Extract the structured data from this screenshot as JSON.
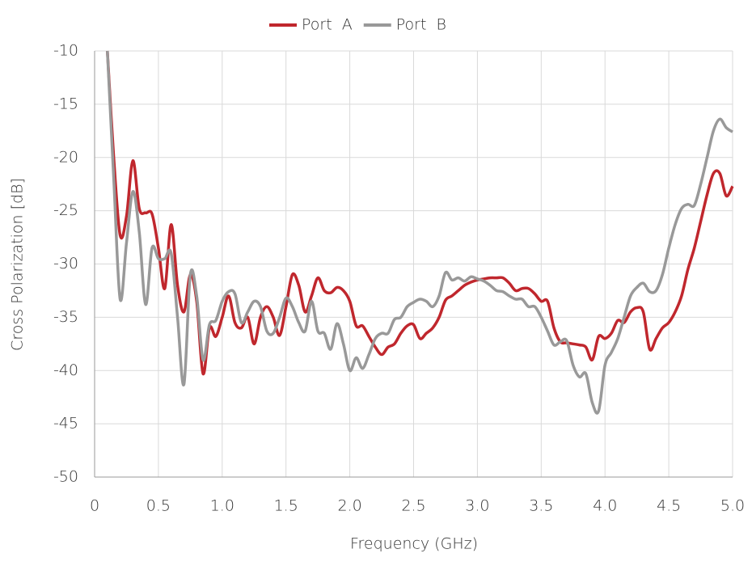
{
  "chart_data": {
    "type": "line",
    "x_label": "Frequency (GHz)",
    "y_label": "Cross Polarization [dB]",
    "x": [
      0.1,
      0.15,
      0.2,
      0.25,
      0.3,
      0.35,
      0.4,
      0.45,
      0.5,
      0.55,
      0.6,
      0.65,
      0.7,
      0.75,
      0.8,
      0.85,
      0.9,
      0.95,
      1.0,
      1.05,
      1.1,
      1.15,
      1.2,
      1.25,
      1.3,
      1.35,
      1.4,
      1.45,
      1.5,
      1.55,
      1.6,
      1.65,
      1.7,
      1.75,
      1.8,
      1.85,
      1.9,
      1.95,
      2.0,
      2.05,
      2.1,
      2.15,
      2.2,
      2.25,
      2.3,
      2.35,
      2.4,
      2.45,
      2.5,
      2.55,
      2.6,
      2.65,
      2.7,
      2.75,
      2.8,
      2.85,
      2.9,
      2.95,
      3.0,
      3.05,
      3.1,
      3.15,
      3.2,
      3.25,
      3.3,
      3.35,
      3.4,
      3.45,
      3.5,
      3.55,
      3.6,
      3.65,
      3.7,
      3.75,
      3.8,
      3.85,
      3.9,
      3.95,
      4.0,
      4.05,
      4.1,
      4.15,
      4.2,
      4.25,
      4.3,
      4.35,
      4.4,
      4.45,
      4.5,
      4.55,
      4.6,
      4.65,
      4.7,
      4.75,
      4.8,
      4.85,
      4.9,
      4.95,
      5.0
    ],
    "series": [
      {
        "name": "Port  A",
        "color": "#c0272d",
        "values": [
          -10,
          -20,
          -27.3,
          -25.5,
          -20.3,
          -24.8,
          -25.2,
          -25.3,
          -28.5,
          -32.3,
          -26.3,
          -32,
          -34.5,
          -31,
          -33.5,
          -40.3,
          -36,
          -36.8,
          -35,
          -33,
          -35.5,
          -36,
          -35,
          -37.5,
          -35,
          -34,
          -35,
          -36.7,
          -34,
          -31,
          -32,
          -34.5,
          -33,
          -31.3,
          -32.5,
          -32.7,
          -32.2,
          -32.5,
          -33.5,
          -35.8,
          -35.8,
          -36.8,
          -37.8,
          -38.5,
          -37.8,
          -37.5,
          -36.5,
          -35.8,
          -35.7,
          -37,
          -36.5,
          -36,
          -35,
          -33.4,
          -33,
          -32.5,
          -32,
          -31.7,
          -31.5,
          -31.4,
          -31.3,
          -31.3,
          -31.3,
          -31.8,
          -32.5,
          -32.3,
          -32.3,
          -32.8,
          -33.5,
          -33.5,
          -36,
          -37.3,
          -37.4,
          -37.5,
          -37.6,
          -37.8,
          -39,
          -36.8,
          -37,
          -36.5,
          -35.3,
          -35.5,
          -34.5,
          -34.1,
          -34.5,
          -38,
          -37,
          -36,
          -35.5,
          -34.5,
          -33,
          -30.5,
          -28.5,
          -26,
          -23.5,
          -21.5,
          -21.5,
          -23.6,
          -22.7
        ]
      },
      {
        "name": "Port  B",
        "color": "#999999",
        "values": [
          -10,
          -22,
          -33.3,
          -28,
          -23.2,
          -27,
          -33.8,
          -28.5,
          -29.5,
          -29.5,
          -29,
          -35,
          -41.3,
          -31,
          -33,
          -39,
          -35.7,
          -35.3,
          -33.5,
          -32.6,
          -32.8,
          -35.5,
          -34.5,
          -33.5,
          -34,
          -36.3,
          -36.5,
          -35,
          -33.2,
          -34,
          -35.5,
          -36.3,
          -33.5,
          -36.3,
          -36.5,
          -38,
          -35.6,
          -37.5,
          -40,
          -38.8,
          -39.8,
          -38.5,
          -37,
          -36.5,
          -36.5,
          -35.2,
          -35,
          -34,
          -33.6,
          -33.3,
          -33.5,
          -34,
          -33,
          -30.8,
          -31.5,
          -31.3,
          -31.6,
          -31.2,
          -31.4,
          -31.6,
          -32,
          -32.5,
          -32.6,
          -33,
          -33.3,
          -33.3,
          -34,
          -34,
          -35,
          -36.3,
          -37.6,
          -37.3,
          -37.2,
          -39.5,
          -40.6,
          -40.3,
          -43,
          -43.8,
          -39.5,
          -38.3,
          -37,
          -35,
          -33,
          -32.2,
          -31.8,
          -32.6,
          -32.5,
          -31,
          -28.5,
          -26.3,
          -24.8,
          -24.4,
          -24.5,
          -22.5,
          -20,
          -17.5,
          -16.4,
          -17.2,
          -17.6
        ]
      }
    ],
    "xlim": [
      0,
      5
    ],
    "ylim": [
      -50,
      -10
    ],
    "xticks": [
      0,
      0.5,
      {
        "value": 1,
        "label": "1.0"
      },
      1.5,
      {
        "value": 2,
        "label": "2.0"
      },
      2.5,
      {
        "value": 3,
        "label": "3.0"
      },
      3.5,
      {
        "value": 4,
        "label": "4.0"
      },
      4.5,
      {
        "value": 5,
        "label": "5.0"
      }
    ],
    "yticks": [
      -10,
      -15,
      -20,
      -25,
      -30,
      -35,
      -40,
      -45,
      -50
    ],
    "grid": true,
    "legend": "top"
  }
}
